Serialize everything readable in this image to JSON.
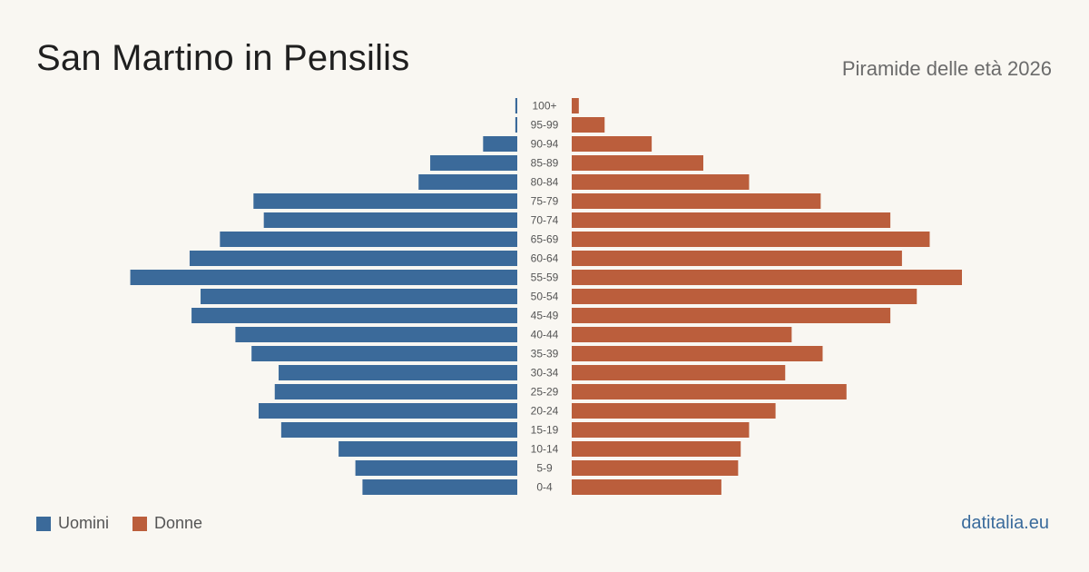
{
  "header": {
    "title": "San Martino in Pensilis",
    "subtitle": "Piramide delle età 2026"
  },
  "legend": {
    "men_label": "Uomini",
    "women_label": "Donne"
  },
  "footer": {
    "source": "datitalia.eu"
  },
  "colors": {
    "men": "#3b6a9a",
    "women": "#bb5e3c",
    "background": "#f9f7f2",
    "age_label": "#555555"
  },
  "chart_data": {
    "type": "bar",
    "orientation": "horizontal-pyramid",
    "categories": [
      "100+",
      "95-99",
      "90-94",
      "85-89",
      "80-84",
      "75-79",
      "70-74",
      "65-69",
      "60-64",
      "55-59",
      "50-54",
      "45-49",
      "40-44",
      "35-39",
      "30-34",
      "25-29",
      "20-24",
      "15-19",
      "10-14",
      "5-9",
      "0-4"
    ],
    "series": [
      {
        "name": "Uomini",
        "values": [
          0.3,
          0.3,
          5.3,
          13.5,
          15.3,
          40.9,
          39.3,
          46.1,
          50.8,
          60,
          49.1,
          50.5,
          43.7,
          41.2,
          37,
          37.6,
          40.1,
          36.6,
          27.7,
          25.1,
          24
        ]
      },
      {
        "name": "Donne",
        "values": [
          1.1,
          5.1,
          12.4,
          20.4,
          27.5,
          38.6,
          49.4,
          55.5,
          51.2,
          60.5,
          53.5,
          49.4,
          34.1,
          38.9,
          33.1,
          42.6,
          31.6,
          27.5,
          26.2,
          25.8,
          23.2
        ]
      }
    ],
    "legend_position": "bottom-left",
    "grid": false
  }
}
